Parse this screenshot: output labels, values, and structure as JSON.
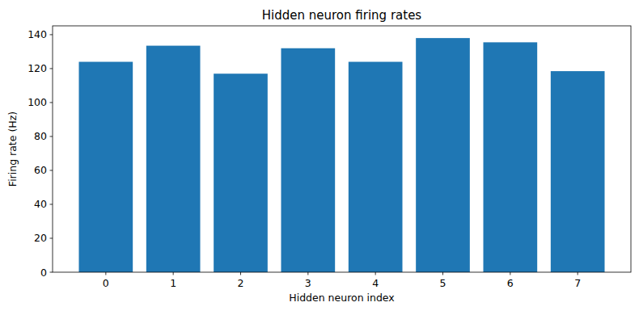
{
  "chart_data": {
    "type": "bar",
    "title": "Hidden neuron firing rates",
    "x_label": "Hidden neuron index",
    "y_label": "Firing rate (Hz)",
    "categories": [
      "0",
      "1",
      "2",
      "3",
      "4",
      "5",
      "6",
      "7"
    ],
    "values": [
      124,
      133.5,
      117,
      132,
      124,
      138,
      135.5,
      118.5
    ],
    "color": "#1f77b4",
    "ylim": [
      0,
      145.2
    ],
    "yticks": [
      0,
      20,
      40,
      60,
      80,
      100,
      120,
      140
    ],
    "grid": false
  }
}
